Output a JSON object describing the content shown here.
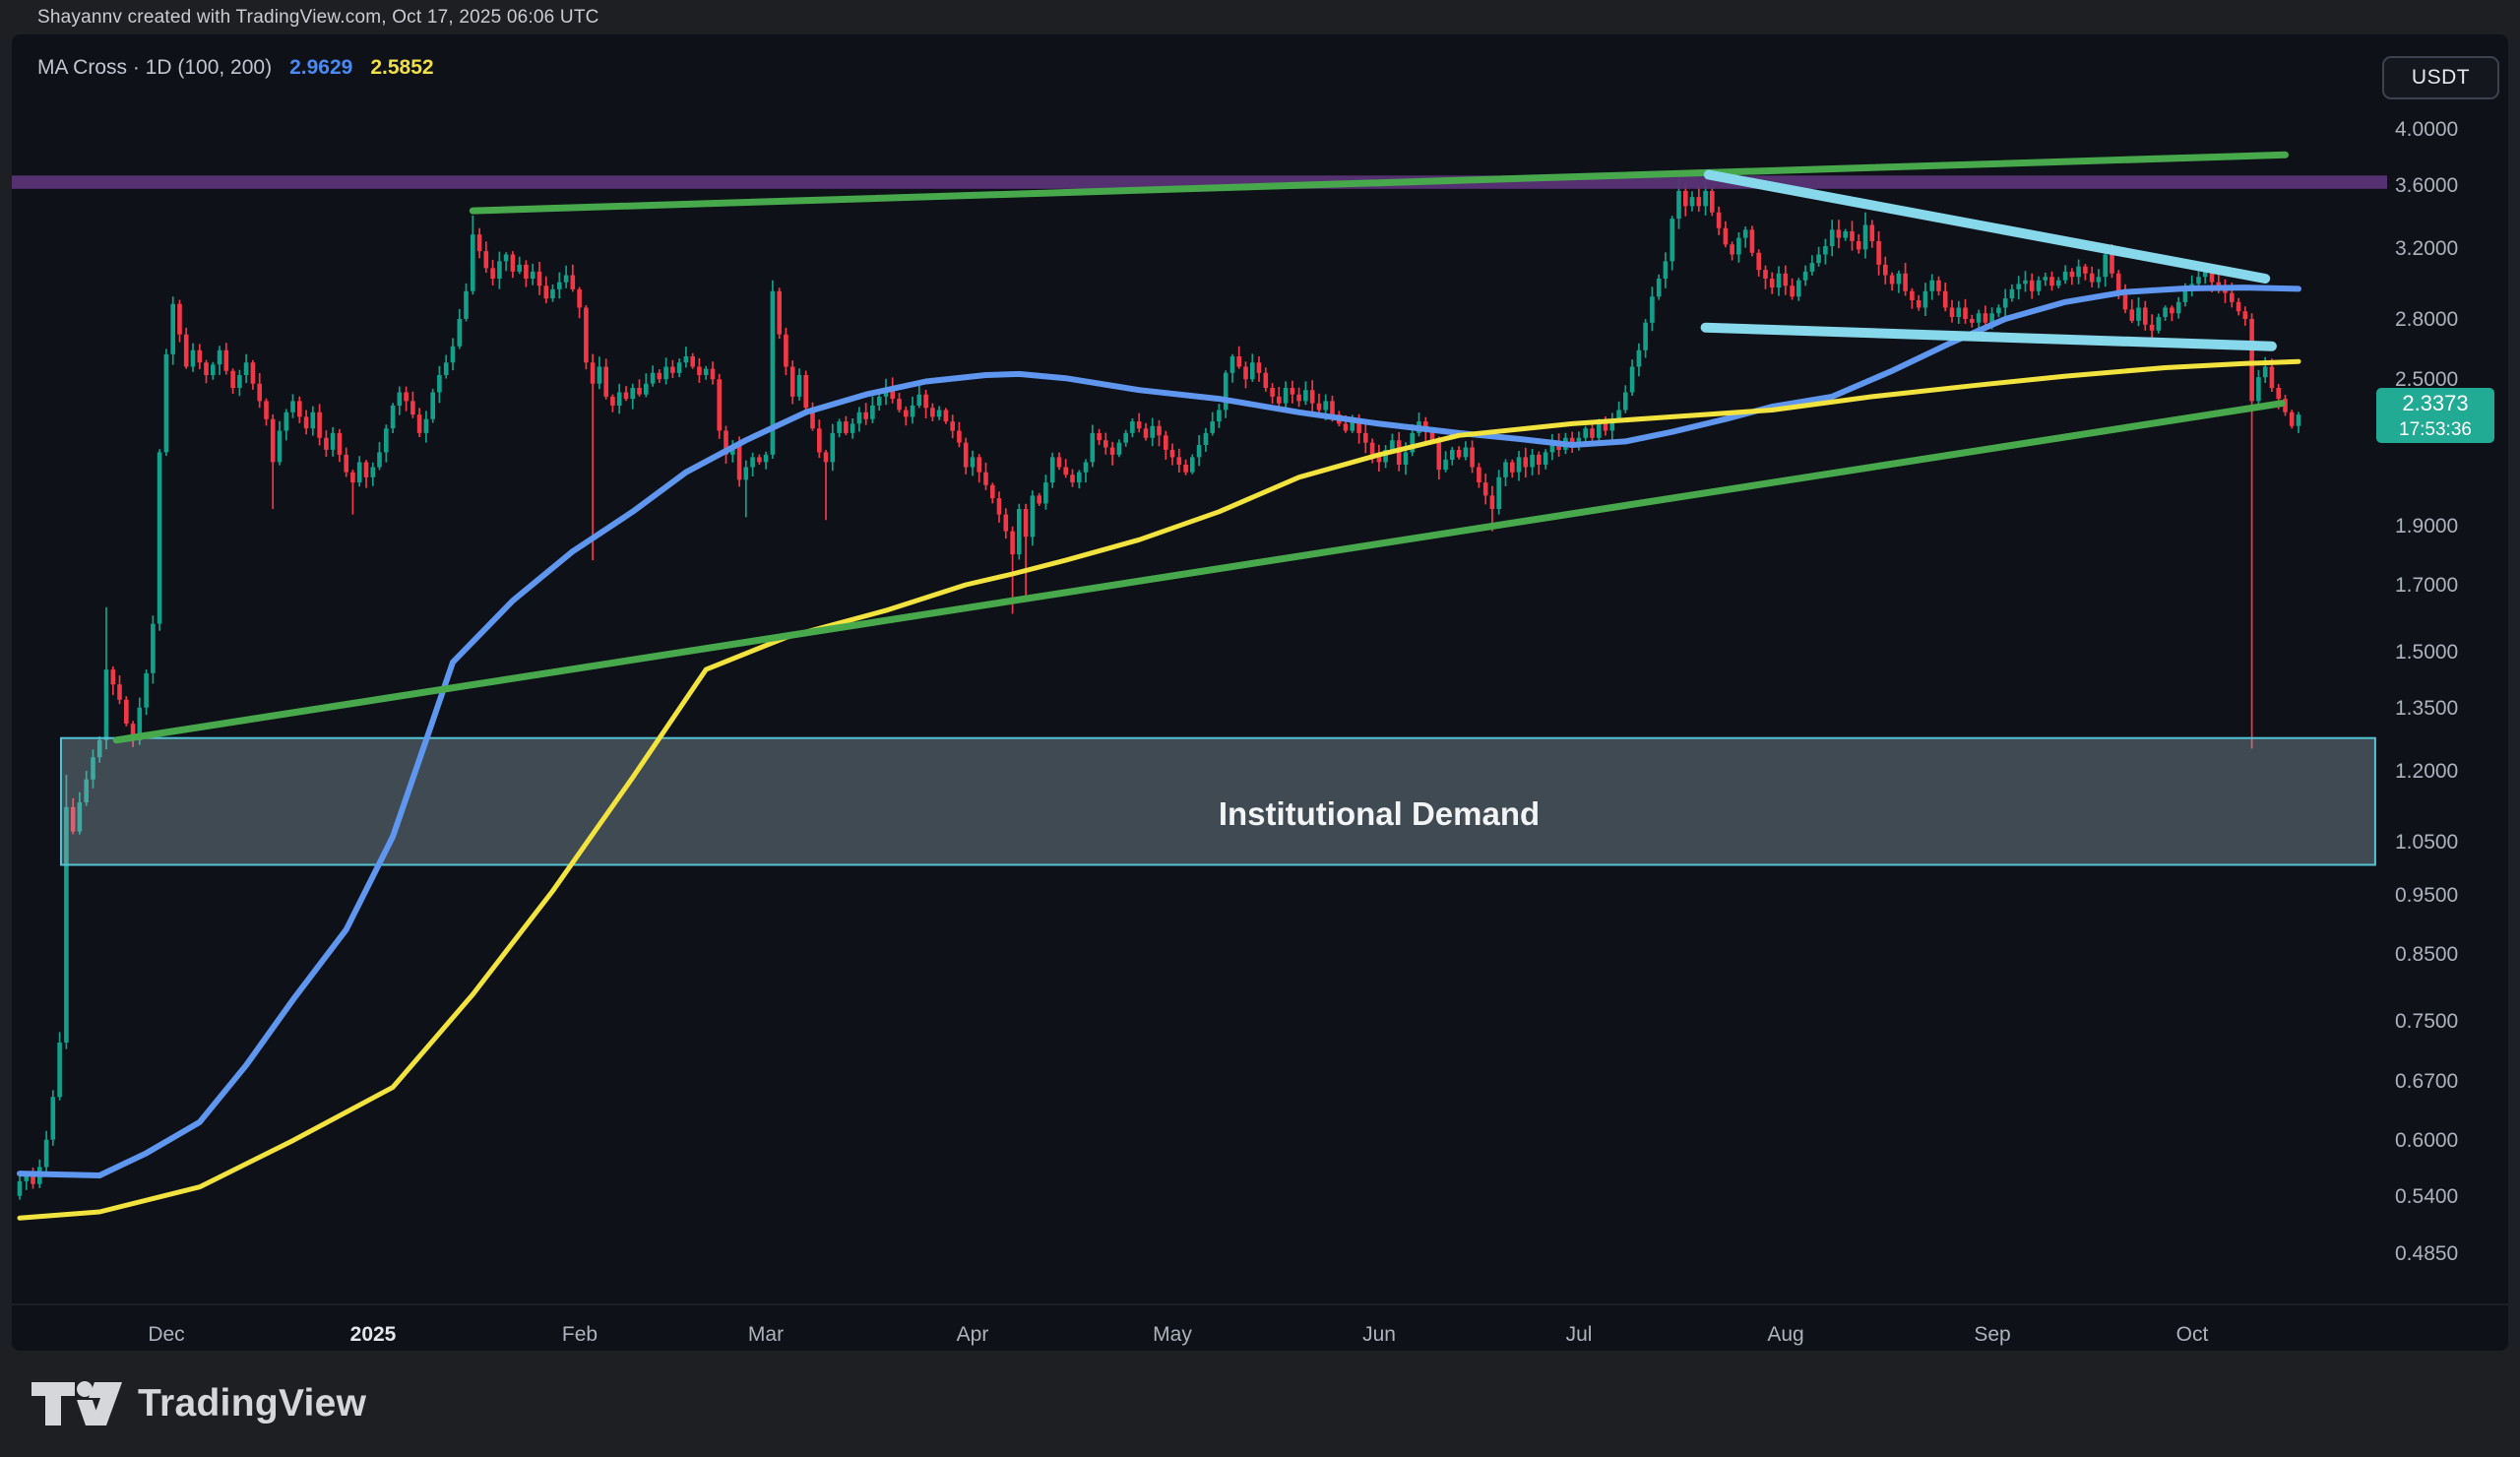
{
  "header": {
    "attribution": "Shayannv created with TradingView.com, Oct 17, 2025 06:06 UTC"
  },
  "legend": {
    "title": "MA Cross · 1D (100, 200)",
    "ma_fast_value": "2.9629",
    "ma_slow_value": "2.5852"
  },
  "symbol_badge": "USDT",
  "footer": {
    "brand": "TradingView"
  },
  "colors": {
    "panel_bg": "#0e1118",
    "chrome_bg": "#1e1f23",
    "candle_up": "#12a08a",
    "candle_down": "#f23846",
    "ma_fast": "#5f97f0",
    "ma_slow": "#f2e33f",
    "trend_green": "#47a84c",
    "trend_cyan": "#87d8ea",
    "band_purple": "#5b3477",
    "zone_fill": "rgba(162,186,200,0.34)",
    "zone_border": "#52c5d6",
    "axis_text": "#adb2bd",
    "axis_text_bold": "#e3e6ea",
    "price_label_bg": "#22ab94",
    "price_label_text": "#ffffff",
    "divider": "#1f242e"
  },
  "chart_data": {
    "type": "candlestick",
    "symbol": "USDT",
    "interval": "1D",
    "title": "MA Cross · 1D (100, 200)",
    "start_date": "2024-11-09",
    "scale": "log",
    "ylim": [
      0.436,
      4.78
    ],
    "first_open": 0.54,
    "closes": [
      0.555,
      0.56,
      0.552,
      0.57,
      0.6,
      0.65,
      0.72,
      1.12,
      1.07,
      1.13,
      1.18,
      1.23,
      1.27,
      1.45,
      1.41,
      1.37,
      1.31,
      1.27,
      1.35,
      1.44,
      1.58,
      2.18,
      2.62,
      2.88,
      2.72,
      2.56,
      2.64,
      2.58,
      2.52,
      2.57,
      2.64,
      2.54,
      2.46,
      2.52,
      2.58,
      2.48,
      2.4,
      2.32,
      2.14,
      2.27,
      2.35,
      2.4,
      2.33,
      2.28,
      2.35,
      2.24,
      2.19,
      2.26,
      2.17,
      2.1,
      2.06,
      2.14,
      2.08,
      2.12,
      2.18,
      2.28,
      2.38,
      2.44,
      2.4,
      2.34,
      2.26,
      2.32,
      2.44,
      2.52,
      2.58,
      2.66,
      2.8,
      2.95,
      3.28,
      3.18,
      3.08,
      3.02,
      3.12,
      3.16,
      3.06,
      3.1,
      3.02,
      3.06,
      2.98,
      2.91,
      2.96,
      3.0,
      3.04,
      2.96,
      2.86,
      2.58,
      2.48,
      2.56,
      2.42,
      2.38,
      2.44,
      2.41,
      2.46,
      2.43,
      2.48,
      2.53,
      2.5,
      2.56,
      2.53,
      2.58,
      2.61,
      2.56,
      2.52,
      2.55,
      2.5,
      2.27,
      2.17,
      2.21,
      2.07,
      2.12,
      2.16,
      2.14,
      2.17,
      2.95,
      2.72,
      2.56,
      2.42,
      2.52,
      2.37,
      2.28,
      2.18,
      2.14,
      2.26,
      2.31,
      2.26,
      2.3,
      2.35,
      2.32,
      2.38,
      2.42,
      2.46,
      2.41,
      2.36,
      2.33,
      2.38,
      2.43,
      2.37,
      2.33,
      2.36,
      2.31,
      2.27,
      2.22,
      2.12,
      2.16,
      2.1,
      2.05,
      2.0,
      1.94,
      1.88,
      1.8,
      1.96,
      1.86,
      2.01,
      1.98,
      2.06,
      2.16,
      2.12,
      2.09,
      2.06,
      2.1,
      2.14,
      2.26,
      2.23,
      2.2,
      2.17,
      2.22,
      2.26,
      2.31,
      2.28,
      2.24,
      2.29,
      2.25,
      2.19,
      2.16,
      2.13,
      2.1,
      2.16,
      2.21,
      2.26,
      2.31,
      2.36,
      2.53,
      2.61,
      2.56,
      2.5,
      2.58,
      2.53,
      2.46,
      2.42,
      2.39,
      2.46,
      2.43,
      2.4,
      2.45,
      2.39,
      2.36,
      2.4,
      2.34,
      2.3,
      2.27,
      2.31,
      2.26,
      2.22,
      2.17,
      2.14,
      2.19,
      2.23,
      2.13,
      2.18,
      2.26,
      2.31,
      2.27,
      2.23,
      2.11,
      2.15,
      2.19,
      2.16,
      2.2,
      2.12,
      2.06,
      2.01,
      1.96,
      2.08,
      2.14,
      2.1,
      2.16,
      2.12,
      2.17,
      2.13,
      2.18,
      2.22,
      2.19,
      2.24,
      2.21,
      2.24,
      2.28,
      2.24,
      2.3,
      2.27,
      2.32,
      2.36,
      2.44,
      2.56,
      2.64,
      2.78,
      2.92,
      3.02,
      3.12,
      3.38,
      3.56,
      3.46,
      3.52,
      3.46,
      3.56,
      3.42,
      3.32,
      3.22,
      3.16,
      3.26,
      3.31,
      3.17,
      3.07,
      3.02,
      2.97,
      3.05,
      2.98,
      2.92,
      3.01,
      3.06,
      3.11,
      3.16,
      3.21,
      3.31,
      3.26,
      3.3,
      3.24,
      3.19,
      3.34,
      3.24,
      3.1,
      3.04,
      2.99,
      3.05,
      2.95,
      2.9,
      2.86,
      2.95,
      3.01,
      2.95,
      2.86,
      2.81,
      2.86,
      2.8,
      2.78,
      2.83,
      2.78,
      2.83,
      2.86,
      2.91,
      2.96,
      2.99,
      3.01,
      2.95,
      3.01,
      3.03,
      2.98,
      3.01,
      3.06,
      3.03,
      3.09,
      3.05,
      3.0,
      3.03,
      3.16,
      3.05,
      2.94,
      2.85,
      2.79,
      2.86,
      2.77,
      2.74,
      2.81,
      2.86,
      2.83,
      2.89,
      2.96,
      2.99,
      3.03,
      3.06,
      3.0,
      2.97,
      2.94,
      2.89,
      2.84,
      2.8,
      2.4,
      2.51,
      2.56,
      2.46,
      2.41,
      2.35,
      2.29,
      2.34
    ],
    "wick_overrides": {
      "7": {
        "h": 1.19
      },
      "13": {
        "h": 1.63
      },
      "23": {
        "h": 2.92
      },
      "38": {
        "l": 1.96
      },
      "50": {
        "l": 1.94
      },
      "68": {
        "h": 3.4
      },
      "86": {
        "l": 1.78
      },
      "109": {
        "l": 1.93
      },
      "113": {
        "h": 3.01
      },
      "121": {
        "l": 1.92
      },
      "149": {
        "l": 1.61
      },
      "151": {
        "l": 1.66
      },
      "183": {
        "h": 2.66
      },
      "221": {
        "l": 1.88
      },
      "249": {
        "h": 3.66
      },
      "253": {
        "h": 3.64
      },
      "277": {
        "h": 3.42
      },
      "313": {
        "h": 3.21
      },
      "335": {
        "l": 1.25,
        "h": 2.83
      },
      "342": {
        "l": 2.26
      }
    },
    "series": [
      {
        "name": "MA 100",
        "current": "2.9629",
        "color": "#5f97f0",
        "width": 6,
        "points": [
          [
            0,
            0.563
          ],
          [
            12,
            0.561
          ],
          [
            19,
            0.585
          ],
          [
            27,
            0.62
          ],
          [
            34,
            0.69
          ],
          [
            41,
            0.78
          ],
          [
            49,
            0.89
          ],
          [
            56,
            1.06
          ],
          [
            61,
            1.27
          ],
          [
            65,
            1.47
          ],
          [
            74,
            1.65
          ],
          [
            83,
            1.81
          ],
          [
            92,
            1.95
          ],
          [
            100,
            2.1
          ],
          [
            109,
            2.23
          ],
          [
            118,
            2.35
          ],
          [
            127,
            2.43
          ],
          [
            136,
            2.49
          ],
          [
            145,
            2.52
          ],
          [
            150,
            2.525
          ],
          [
            157,
            2.505
          ],
          [
            168,
            2.45
          ],
          [
            180,
            2.41
          ],
          [
            186,
            2.38
          ],
          [
            192,
            2.35
          ],
          [
            204,
            2.3
          ],
          [
            216,
            2.26
          ],
          [
            225,
            2.235
          ],
          [
            233,
            2.21
          ],
          [
            241,
            2.225
          ],
          [
            248,
            2.265
          ],
          [
            256,
            2.32
          ],
          [
            263,
            2.375
          ],
          [
            272,
            2.42
          ],
          [
            281,
            2.54
          ],
          [
            290,
            2.68
          ],
          [
            298,
            2.8
          ],
          [
            307,
            2.89
          ],
          [
            316,
            2.945
          ],
          [
            325,
            2.965
          ],
          [
            334,
            2.97
          ],
          [
            342,
            2.9629
          ]
        ]
      },
      {
        "name": "MA 200",
        "current": "2.5852",
        "color": "#f2e33f",
        "width": 5,
        "points": [
          [
            0,
            0.518
          ],
          [
            12,
            0.524
          ],
          [
            27,
            0.549
          ],
          [
            41,
            0.599
          ],
          [
            56,
            0.662
          ],
          [
            68,
            0.788
          ],
          [
            80,
            0.957
          ],
          [
            92,
            1.184
          ],
          [
            103,
            1.45
          ],
          [
            115,
            1.54
          ],
          [
            130,
            1.62
          ],
          [
            142,
            1.7
          ],
          [
            149,
            1.735
          ],
          [
            157,
            1.78
          ],
          [
            168,
            1.85
          ],
          [
            180,
            1.95
          ],
          [
            192,
            2.08
          ],
          [
            204,
            2.17
          ],
          [
            216,
            2.25
          ],
          [
            233,
            2.3
          ],
          [
            248,
            2.33
          ],
          [
            263,
            2.36
          ],
          [
            278,
            2.42
          ],
          [
            293,
            2.47
          ],
          [
            307,
            2.515
          ],
          [
            322,
            2.555
          ],
          [
            334,
            2.575
          ],
          [
            342,
            2.5852
          ]
        ]
      }
    ],
    "trendlines": [
      {
        "name": "ascending-support",
        "color": "#47a84c",
        "width": 7,
        "from": [
          14.5,
          1.27
        ],
        "to": [
          339.5,
          2.39
        ]
      },
      {
        "name": "ascending-resistance",
        "color": "#47a84c",
        "width": 7,
        "from": [
          68,
          3.43
        ],
        "to": [
          340,
          3.81
        ]
      },
      {
        "name": "descending-resistance",
        "color": "#87d8ea",
        "width": 10,
        "from": [
          253.5,
          3.67
        ],
        "to": [
          337,
          3.02
        ]
      },
      {
        "name": "horizontal-support",
        "color": "#87d8ea",
        "width": 10,
        "from": [
          253,
          2.755
        ],
        "to": [
          338,
          2.66
        ]
      }
    ],
    "resistance_band": {
      "price_from": 3.575,
      "price_to": 3.665,
      "color": "#5b3477"
    },
    "demand_zone": {
      "price_from": 1.005,
      "price_to": 1.275,
      "day_from": 6.2,
      "day_to": 353.5,
      "label": "Institutional Demand",
      "label_day": 204,
      "label_price": 1.105
    },
    "last_price_label": {
      "price": "2.3373",
      "price_value": 2.3373,
      "countdown": "17:53:36"
    },
    "y_axis": {
      "ticks": [
        {
          "t": "4.0000",
          "p": 4.0
        },
        {
          "t": "3.6000",
          "p": 3.6
        },
        {
          "t": "3.2000",
          "p": 3.2
        },
        {
          "t": "2.8000",
          "p": 2.8
        },
        {
          "t": "2.5000",
          "p": 2.5
        },
        {
          "t": "1.9000",
          "p": 1.9
        },
        {
          "t": "1.7000",
          "p": 1.7
        },
        {
          "t": "1.5000",
          "p": 1.5
        },
        {
          "t": "1.3500",
          "p": 1.35
        },
        {
          "t": "1.2000",
          "p": 1.2
        },
        {
          "t": "1.0500",
          "p": 1.05
        },
        {
          "t": "0.9500",
          "p": 0.95
        },
        {
          "t": "0.8500",
          "p": 0.85
        },
        {
          "t": "0.7500",
          "p": 0.75
        },
        {
          "t": "0.6700",
          "p": 0.67
        },
        {
          "t": "0.6000",
          "p": 0.6
        },
        {
          "t": "0.5400",
          "p": 0.54
        },
        {
          "t": "0.4850",
          "p": 0.485
        }
      ]
    },
    "x_axis": {
      "ticks": [
        {
          "t": "Dec",
          "d": 22
        },
        {
          "t": "2025",
          "d": 53,
          "b": 1
        },
        {
          "t": "Feb",
          "d": 84
        },
        {
          "t": "Mar",
          "d": 112
        },
        {
          "t": "Apr",
          "d": 143
        },
        {
          "t": "May",
          "d": 173
        },
        {
          "t": "Jun",
          "d": 204
        },
        {
          "t": "Jul",
          "d": 234
        },
        {
          "t": "Aug",
          "d": 265
        },
        {
          "t": "Sep",
          "d": 296
        },
        {
          "t": "Oct",
          "d": 326
        }
      ]
    }
  }
}
